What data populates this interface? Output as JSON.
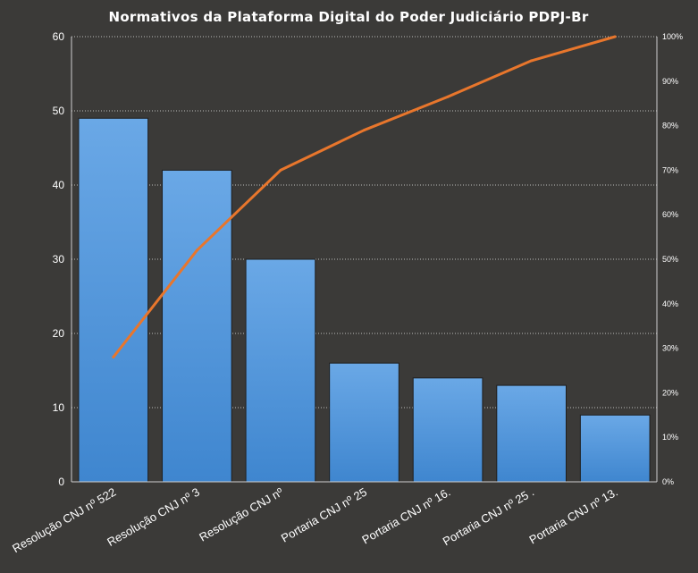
{
  "chart_data": {
    "type": "bar",
    "title": "Normativos da Plataforma Digital do Poder Judiciário PDPJ-Br",
    "categories": [
      "Resolução CNJ nº 522",
      "Resolução CNJ nº 3",
      "Resolução CNJ nº",
      "Portaria CNJ nº 25",
      "Portaria CNJ nº 16.",
      "Portaria CNJ nº 25 .",
      "Portaria CNJ nº 13."
    ],
    "series": [
      {
        "type": "bar",
        "values": [
          49,
          42,
          30,
          16,
          14,
          13,
          9
        ],
        "color": "#4a8fd6"
      },
      {
        "type": "line",
        "axis": "right",
        "values": [
          28,
          52,
          70,
          79,
          86.5,
          94.6,
          100
        ],
        "color": "#e8762c"
      }
    ],
    "ylim": [
      0,
      60
    ],
    "yticks": [
      "0",
      "10",
      "20",
      "30",
      "40",
      "50",
      "60"
    ],
    "y2lim": [
      0,
      100
    ],
    "y2ticks": [
      "0%",
      "10%",
      "20%",
      "30%",
      "40%",
      "50%",
      "60%",
      "70%",
      "80%",
      "90%",
      "100%"
    ],
    "grid": true,
    "background": "#3b3a38"
  }
}
